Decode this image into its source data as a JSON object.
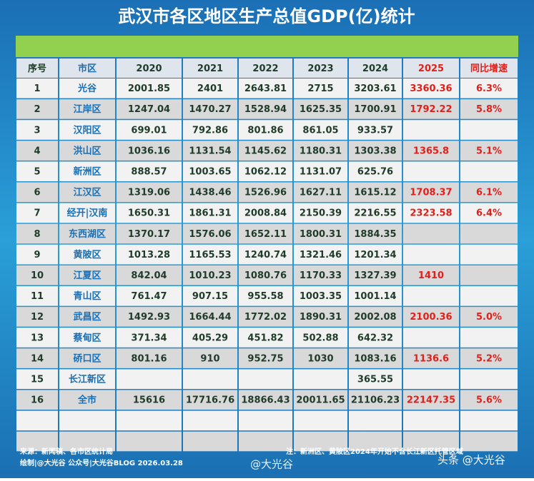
{
  "header": {
    "title": "武汉市各区地区生产总值GDP(亿)统计"
  },
  "table": {
    "columns": [
      "序号",
      "市区",
      "2020",
      "2021",
      "2022",
      "2023",
      "2024",
      "2025",
      "同比增速"
    ],
    "rows": [
      [
        "1",
        "光谷",
        "2001.85",
        "2401",
        "2643.81",
        "2715",
        "3203.61",
        "3360.36",
        "6.3%"
      ],
      [
        "2",
        "江岸区",
        "1247.04",
        "1470.27",
        "1528.94",
        "1625.35",
        "1700.91",
        "1792.22",
        "5.8%"
      ],
      [
        "3",
        "汉阳区",
        "699.01",
        "792.86",
        "801.86",
        "861.05",
        "933.57",
        null,
        null
      ],
      [
        "4",
        "洪山区",
        "1036.16",
        "1131.54",
        "1145.62",
        "1180.31",
        "1303.38",
        "1365.8",
        "5.1%"
      ],
      [
        "5",
        "新洲区",
        "888.57",
        "1003.65",
        "1062.12",
        "1131.07",
        "625.76",
        null,
        null
      ],
      [
        "6",
        "江汉区",
        "1319.06",
        "1438.46",
        "1526.96",
        "1627.11",
        "1615.12",
        "1708.37",
        "6.1%"
      ],
      [
        "7",
        "经开|汉南",
        "1650.31",
        "1861.31",
        "2008.84",
        "2150.39",
        "2216.55",
        "2323.58",
        "6.4%"
      ],
      [
        "8",
        "东西湖区",
        "1370.17",
        "1576.06",
        "1652.11",
        "1800.31",
        "1884.35",
        null,
        null
      ],
      [
        "9",
        "黄陂区",
        "1013.28",
        "1165.53",
        "1240.74",
        "1321.46",
        "1201.34",
        null,
        null
      ],
      [
        "10",
        "江夏区",
        "842.04",
        "1010.23",
        "1080.76",
        "1170.33",
        "1327.39",
        "1410",
        null
      ],
      [
        "11",
        "青山区",
        "761.47",
        "907.15",
        "955.58",
        "1003.35",
        "1001.14",
        null,
        null
      ],
      [
        "12",
        "武昌区",
        "1492.93",
        "1664.44",
        "1772.02",
        "1890.31",
        "2002.08",
        "2100.36",
        "5.0%"
      ],
      [
        "13",
        "蔡甸区",
        "371.34",
        "405.29",
        "451.82",
        "502.88",
        "642.32",
        null,
        null
      ],
      [
        "14",
        "硚口区",
        "801.16",
        "910",
        "952.75",
        "1030",
        "1083.16",
        "1136.6",
        "5.2%"
      ],
      [
        "15",
        "长江新区",
        null,
        null,
        null,
        null,
        "365.55",
        null,
        null
      ],
      [
        "16",
        "全市",
        "15616",
        "17716.76",
        "18866.43",
        "20011.65",
        "21106.23",
        "22147.35",
        "5.6%"
      ]
    ]
  },
  "footer": {
    "source": "来源：新闻稿、各市区统计局",
    "credit": "绘制|@大光谷    公众号|大光谷BLOG    2026.03.28",
    "note": "注：新洲区、黄陂区2024年开始不含长江新区托管区域"
  },
  "watermarks": [
    "@大光谷",
    "头条 @大光谷"
  ]
}
